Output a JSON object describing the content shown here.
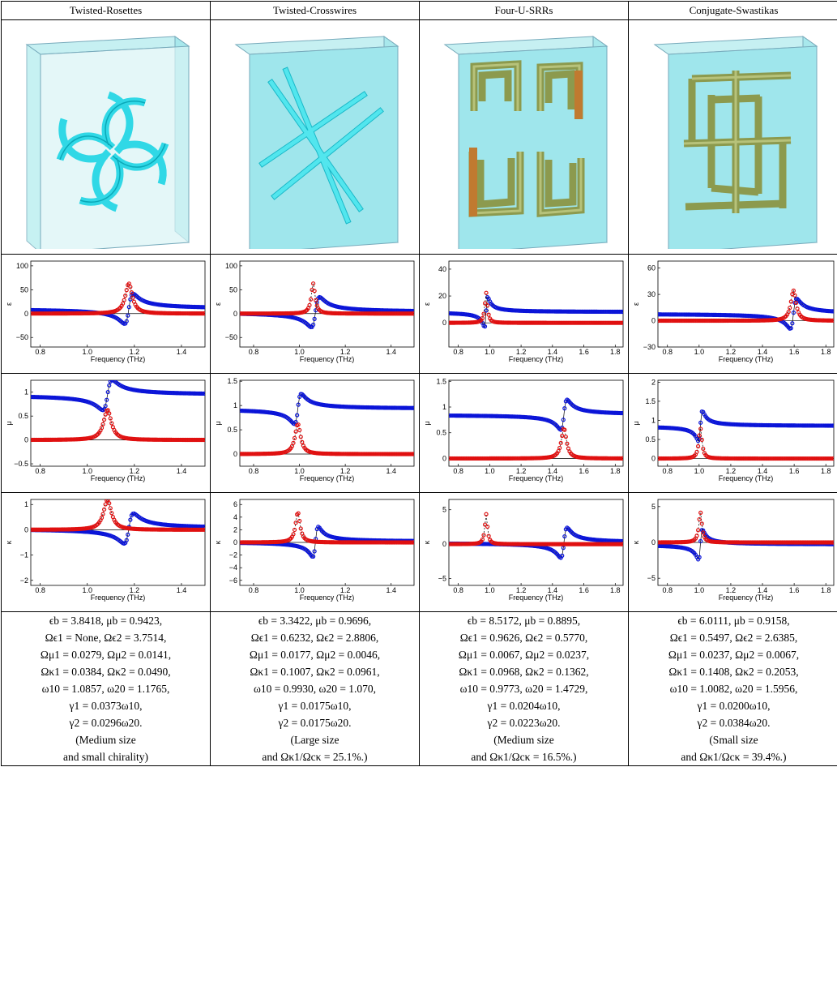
{
  "columns": [
    {
      "name": "Twisted-Rosettes",
      "structure_icon": "twisted-rosettes-icon",
      "freq_xlim": [
        0.76,
        1.5
      ],
      "freq_ticks": [
        0.8,
        1.0,
        1.2,
        1.4
      ],
      "freq_tick_labels": [
        "0.8",
        "1.0",
        "1.2",
        "1.4"
      ],
      "eps": {
        "ylim": [
          -70,
          110
        ],
        "ticks": [
          -50,
          0,
          50,
          100
        ],
        "tick_labels": [
          "−50",
          "0",
          "50",
          "100"
        ],
        "blue": {
          "base": 10,
          "amp": -220,
          "f0": 1.1765,
          "g": 0.018
        },
        "red": {
          "base": 0,
          "amp": -90,
          "f0": 1.1765,
          "g": 0.018,
          "im": true
        }
      },
      "mu": {
        "ylim": [
          -0.55,
          1.25
        ],
        "ticks": [
          -0.5,
          0,
          0.5,
          1
        ],
        "tick_labels": [
          "−0.5",
          "0",
          "0.5",
          "1"
        ],
        "blue": {
          "base": 0.94,
          "amp": -0.01,
          "f0": 1.0857,
          "g": 0.02
        },
        "red": {
          "base": 0,
          "amp": -0.015,
          "f0": 1.0857,
          "g": 0.02,
          "im": true
        }
      },
      "kappa": {
        "ylim": [
          -2.2,
          1.2
        ],
        "ticks": [
          -2,
          -1,
          0,
          1
        ],
        "tick_labels": [
          "−2",
          "−1",
          "0",
          "1"
        ],
        "blue": {
          "base": 0.05,
          "amp": -0.04,
          "f0": 1.1765,
          "g": 0.02
        },
        "red": {
          "base": 0,
          "amp": -0.04,
          "f0": 1.0857,
          "g": 0.02,
          "im": true
        }
      },
      "params": [
        "ϵb = 3.8418, μb = 0.9423,",
        "Ωϵ1 = None, Ωϵ2 = 3.7514,",
        "Ωμ1 = 0.0279, Ωμ2 = 0.0141,",
        "Ωκ1 = 0.0384, Ωκ2 = 0.0490,",
        "ω10 = 1.0857, ω20 = 1.1765,",
        "γ1 = 0.0373ω10,",
        "γ2 = 0.0296ω20.",
        "(Medium size",
        "and small chirality)"
      ]
    },
    {
      "name": "Twisted-Crosswires",
      "structure_icon": "twisted-crosswires-icon",
      "freq_xlim": [
        0.74,
        1.5
      ],
      "freq_ticks": [
        0.8,
        1.0,
        1.2,
        1.4
      ],
      "freq_tick_labels": [
        "0.8",
        "1.0",
        "1.2",
        "1.4"
      ],
      "eps": {
        "ylim": [
          -70,
          110
        ],
        "ticks": [
          -50,
          0,
          50,
          100
        ],
        "tick_labels": [
          "−50",
          "0",
          "50",
          "100"
        ],
        "blue": {
          "base": 3,
          "amp": -120,
          "f0": 1.07,
          "g": 0.018
        },
        "red": {
          "base": 0,
          "amp": -70,
          "f0": 1.06,
          "g": 0.01,
          "im": true
        }
      },
      "mu": {
        "ylim": [
          -0.25,
          1.52
        ],
        "ticks": [
          0,
          0.5,
          1,
          1.5
        ],
        "tick_labels": [
          "0",
          "0.5",
          "1",
          "1.5"
        ],
        "blue": {
          "base": 0.93,
          "amp": -0.02,
          "f0": 0.993,
          "g": 0.015
        },
        "red": {
          "base": 0,
          "amp": -0.02,
          "f0": 0.993,
          "g": 0.015,
          "im": true
        }
      },
      "kappa": {
        "ylim": [
          -6.8,
          6.8
        ],
        "ticks": [
          -6,
          -4,
          -2,
          0,
          2,
          4,
          6
        ],
        "tick_labels": [
          "−6",
          "−4",
          "−2",
          "0",
          "2",
          "4",
          "6"
        ],
        "blue": {
          "base": 0.1,
          "amp": -0.15,
          "f0": 1.07,
          "g": 0.012
        },
        "red": {
          "base": 0,
          "amp": -0.15,
          "f0": 0.993,
          "g": 0.012,
          "im": true
        }
      },
      "params": [
        "ϵb = 3.3422, μb = 0.9696,",
        "Ωϵ1 = 0.6232, Ωϵ2 = 2.8806,",
        "Ωμ1 = 0.0177, Ωμ2 = 0.0046,",
        "Ωκ1 = 0.1007, Ωκ2 = 0.0961,",
        "ω10 = 0.9930, ω20 = 1.070,",
        "γ1 = 0.0175ω10,",
        "γ2 = 0.0175ω20.",
        "(Large size",
        "and Ωκ1/Ωcκ = 25.1%.)"
      ]
    },
    {
      "name": "Four-U-SRRs",
      "structure_icon": "four-u-srrs-icon",
      "freq_xlim": [
        0.74,
        1.85
      ],
      "freq_ticks": [
        0.8,
        1.0,
        1.2,
        1.4,
        1.6,
        1.8
      ],
      "freq_tick_labels": [
        "0.8",
        "1.0",
        "1.2",
        "1.4",
        "1.6",
        "1.8"
      ],
      "eps": {
        "ylim": [
          -18,
          46
        ],
        "ticks": [
          0,
          20,
          40
        ],
        "tick_labels": [
          "0",
          "20",
          "40"
        ],
        "blue": {
          "base": 8,
          "amp": -8,
          "f0": 0.9773,
          "g": 0.01
        },
        "red": {
          "base": 0,
          "amp": -4,
          "f0": 0.9773,
          "g": 0.01,
          "im": true
        }
      },
      "mu": {
        "ylim": [
          -0.15,
          1.52
        ],
        "ticks": [
          0,
          0.5,
          1,
          1.5
        ],
        "tick_labels": [
          "0",
          "0.5",
          "1",
          "1.5"
        ],
        "blue": {
          "base": 0.85,
          "amp": -0.01,
          "f0": 1.4729,
          "g": 0.02
        },
        "red": {
          "base": 0,
          "amp": -0.008,
          "f0": 1.4729,
          "g": 0.02,
          "im": true
        }
      },
      "kappa": {
        "ylim": [
          -6,
          6.5
        ],
        "ticks": [
          -5,
          0,
          5
        ],
        "tick_labels": [
          "−5",
          "0",
          "5"
        ],
        "blue": {
          "base": 0.2,
          "amp": -0.12,
          "f0": 1.4729,
          "g": 0.02
        },
        "red": {
          "base": 0,
          "amp": -0.1,
          "f0": 0.9773,
          "g": 0.01,
          "im": true
        }
      },
      "params": [
        "ϵb = 8.5172, μb = 0.8895,",
        "Ωϵ1 = 0.9626, Ωϵ2 = 0.5770,",
        "Ωμ1 = 0.0067, Ωμ2 = 0.0237,",
        "Ωκ1 = 0.0968, Ωκ2 = 0.1362,",
        "ω10 = 0.9773, ω20 = 1.4729,",
        "γ1 = 0.0204ω10,",
        "γ2 = 0.0223ω20.",
        "(Medium size",
        "and Ωκ1/Ωcκ = 16.5%.)"
      ]
    },
    {
      "name": "Conjugate-Swastikas",
      "structure_icon": "conjugate-swastikas-icon",
      "freq_xlim": [
        0.74,
        1.85
      ],
      "freq_ticks": [
        0.8,
        1.0,
        1.2,
        1.4,
        1.6,
        1.8
      ],
      "freq_tick_labels": [
        "0.8",
        "1.0",
        "1.2",
        "1.4",
        "1.6",
        "1.8"
      ],
      "eps": {
        "ylim": [
          -30,
          68
        ],
        "ticks": [
          -30,
          0,
          30,
          60
        ],
        "tick_labels": [
          "−30",
          "0",
          "30",
          "60"
        ],
        "blue": {
          "base": 8,
          "amp": -30,
          "f0": 1.5956,
          "g": 0.02
        },
        "red": {
          "base": 0,
          "amp": -20,
          "f0": 1.5956,
          "g": 0.02,
          "im": true
        }
      },
      "mu": {
        "ylim": [
          -0.2,
          2.05
        ],
        "ticks": [
          0,
          0.5,
          1,
          1.5,
          2
        ],
        "tick_labels": [
          "0",
          "0.5",
          "1",
          "1.5",
          "2"
        ],
        "blue": {
          "base": 0.85,
          "amp": -0.02,
          "f0": 1.0082,
          "g": 0.012
        },
        "red": {
          "base": 0,
          "amp": -0.02,
          "f0": 1.0082,
          "g": 0.012,
          "im": true
        }
      },
      "kappa": {
        "ylim": [
          -6,
          6
        ],
        "ticks": [
          -5,
          0,
          5
        ],
        "tick_labels": [
          "−5",
          "0",
          "5"
        ],
        "blue": {
          "base": -0.3,
          "amp": -0.15,
          "f0": 1.0082,
          "g": 0.012
        },
        "red": {
          "base": 0,
          "amp": -0.15,
          "f0": 1.0082,
          "g": 0.012,
          "im": true
        }
      },
      "params": [
        "ϵb = 6.0111, μb = 0.9158,",
        "Ωϵ1 = 0.5497, Ωϵ2 = 2.6385,",
        "Ωμ1 = 0.0237, Ωμ2 = 0.0067,",
        "Ωκ1 = 0.1408, Ωκ2 = 0.2053,",
        "ω10 = 1.0082, ω20 = 1.5956,",
        "γ1 = 0.0200ω10,",
        "γ2 = 0.0384ω20.",
        "(Small size",
        "and Ωκ1/Ωcκ = 39.4%.)"
      ]
    }
  ],
  "ylabels": {
    "eps": "ε",
    "mu": "μ",
    "kappa": "κ"
  },
  "xlabel": "Frequency (THz)",
  "colors": {
    "blue": "#0a14d8",
    "red": "#e01010",
    "slab": "#7fe0e8",
    "metal": "#9aaa5a",
    "wire": "#38e0e8"
  }
}
